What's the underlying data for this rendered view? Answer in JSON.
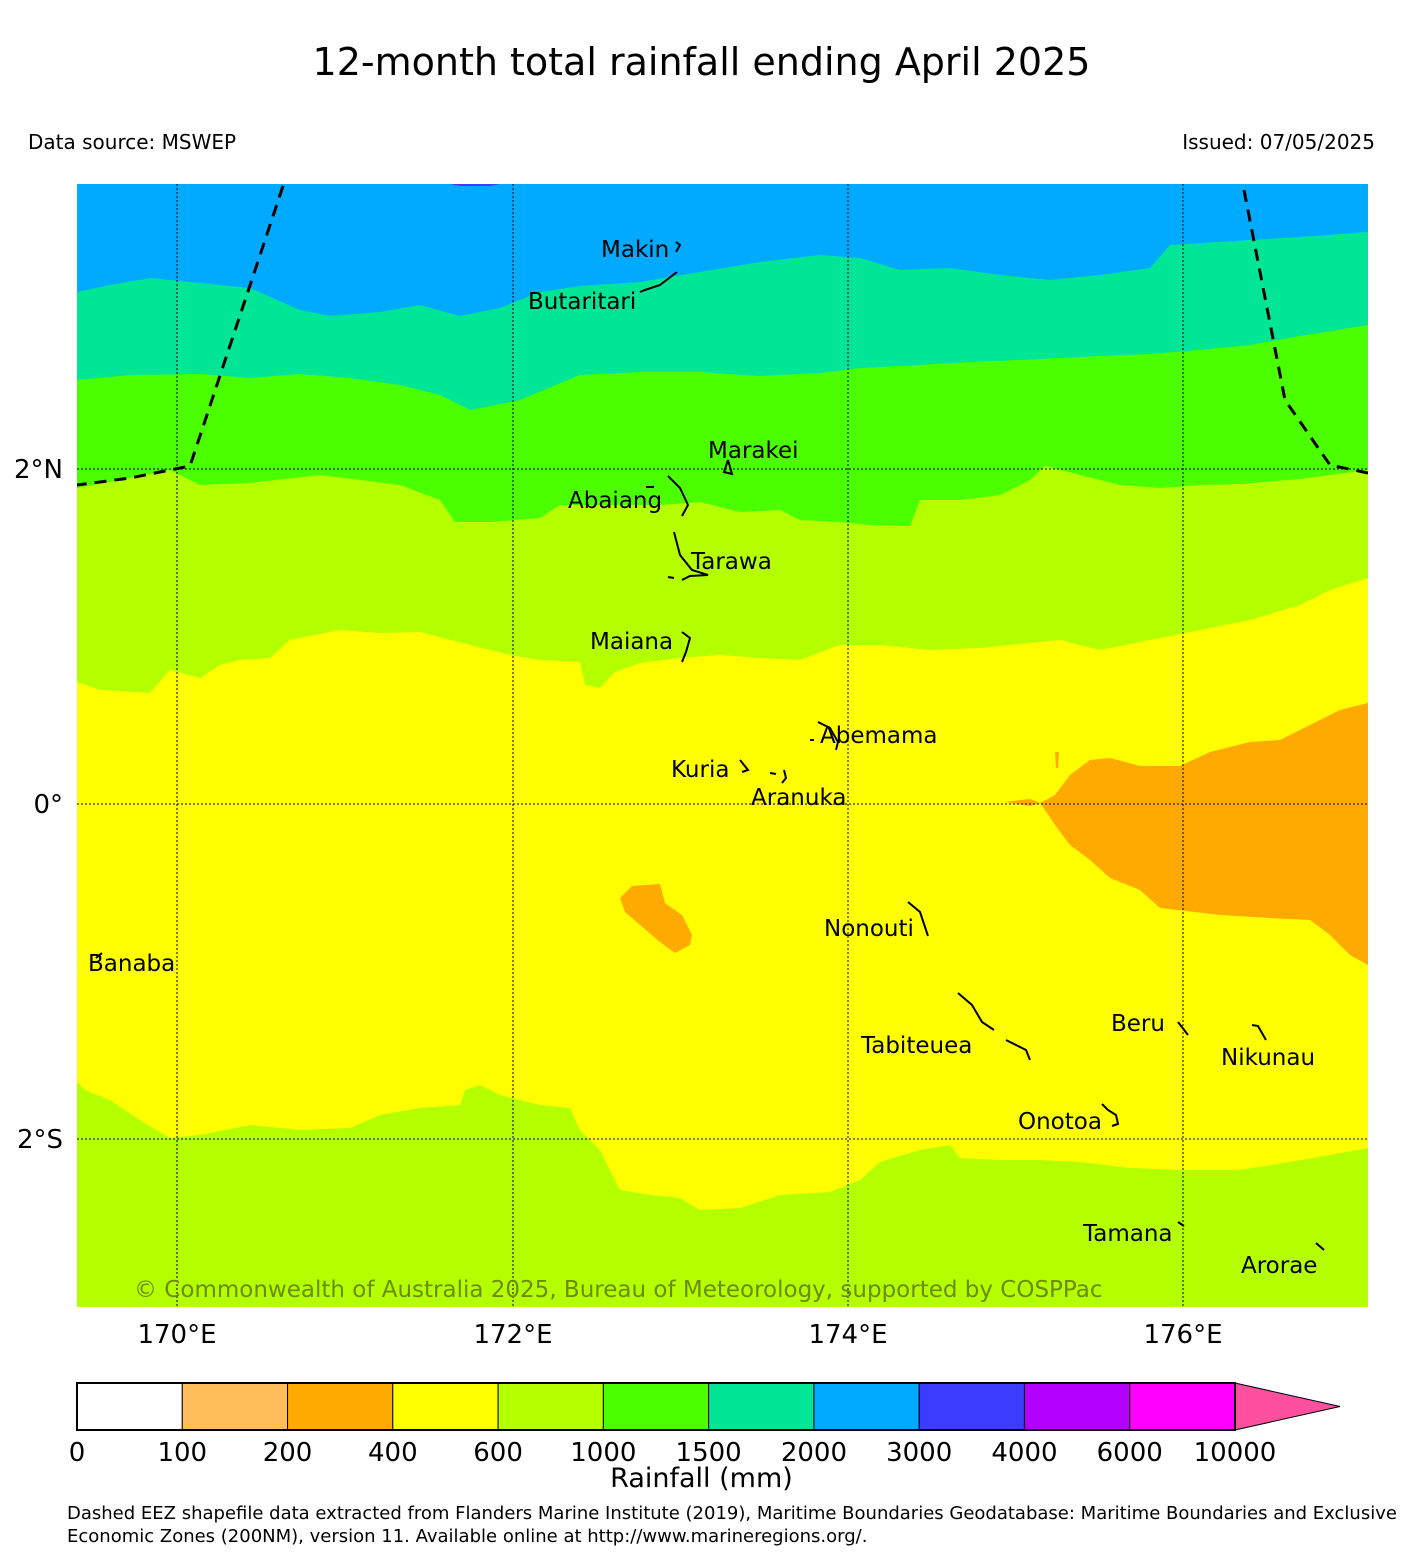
{
  "title": "12-month total rainfall ending April 2025",
  "data_source": "Data source: MSWEP",
  "issued": "Issued: 07/05/2025",
  "copyright": "© Commonwealth of Australia 2025, Bureau of Meteorology, supported by COSPPac",
  "axes": {
    "lon_ticks": [
      "170°E",
      "172°E",
      "174°E",
      "176°E"
    ],
    "lat_ticks": [
      "2°N",
      "0°",
      "2°S"
    ]
  },
  "islands": [
    {
      "name": "Makin"
    },
    {
      "name": "Butaritari"
    },
    {
      "name": "Marakei"
    },
    {
      "name": "Abaiang"
    },
    {
      "name": "Tarawa"
    },
    {
      "name": "Maiana"
    },
    {
      "name": "Abemama"
    },
    {
      "name": "Kuria"
    },
    {
      "name": "Aranuka"
    },
    {
      "name": "Nonouti"
    },
    {
      "name": "Banaba"
    },
    {
      "name": "Tabiteuea"
    },
    {
      "name": "Beru"
    },
    {
      "name": "Nikunau"
    },
    {
      "name": "Onotoa"
    },
    {
      "name": "Tamana"
    },
    {
      "name": "Arorae"
    }
  ],
  "colorbar": {
    "label": "Rainfall (mm)",
    "ticks": [
      "0",
      "100",
      "200",
      "400",
      "600",
      "1000",
      "1500",
      "2000",
      "3000",
      "4000",
      "6000",
      "10000"
    ],
    "colors": [
      "#ffffff",
      "#ffbe5a",
      "#ffaa00",
      "#ffff00",
      "#b4ff00",
      "#4bff00",
      "#00e696",
      "#00aaff",
      "#3c3cff",
      "#b400ff",
      "#ff00ff"
    ],
    "extend_color": "#ff50a0"
  },
  "footnote": "Dashed EEZ shapefile data extracted from Flanders Marine Institute (2019), Maritime Boundaries Geodatabase: Maritime Boundaries and Exclusive Economic Zones (200NM), version 11. Available online at http://www.marineregions.org/."
}
